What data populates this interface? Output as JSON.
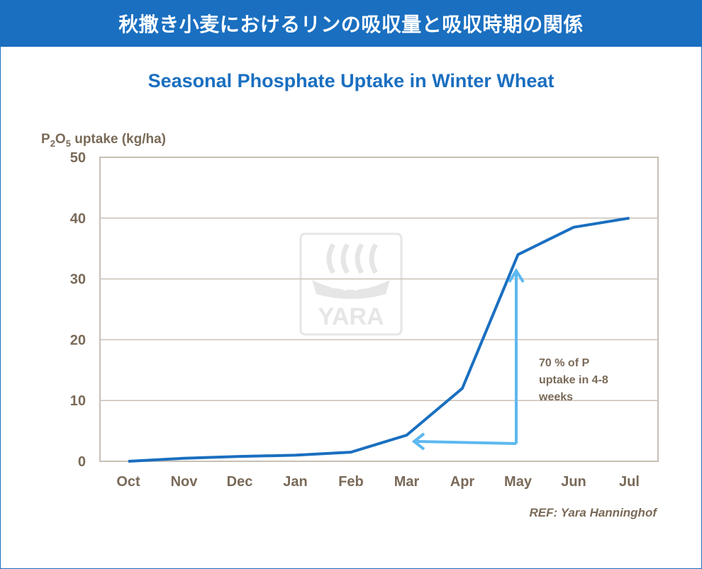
{
  "header": {
    "title": "秋撒き小麦におけるリンの吸収量と吸収時期の関係"
  },
  "watermark": {
    "text": "YARA"
  },
  "colors": {
    "banner": "#1a6fc0",
    "line": "#1a6fc0",
    "arrow": "#5cb8f0",
    "text": "#7a6a58",
    "grid": "#c9c0b6"
  },
  "chart_data": {
    "type": "line",
    "title": "Seasonal Phosphate Uptake in Winter Wheat",
    "ylabel_parts": {
      "p": "P",
      "sub1": "2",
      "o": "O",
      "sub2": "5",
      "rest": " uptake (kg/ha)"
    },
    "categories": [
      "Oct",
      "Nov",
      "Dec",
      "Jan",
      "Feb",
      "Mar",
      "Apr",
      "May",
      "Jun",
      "Jul"
    ],
    "values": [
      0,
      0.5,
      0.8,
      1.0,
      1.5,
      4.3,
      12,
      34,
      38.5,
      40
    ],
    "ylim": [
      0,
      50
    ],
    "yticks": [
      0,
      10,
      20,
      30,
      40,
      50
    ],
    "grid": true,
    "annotation": [
      "70 % of P",
      "uptake in 4-8",
      "weeks"
    ],
    "reference": "REF: Yara Hanninghof"
  }
}
